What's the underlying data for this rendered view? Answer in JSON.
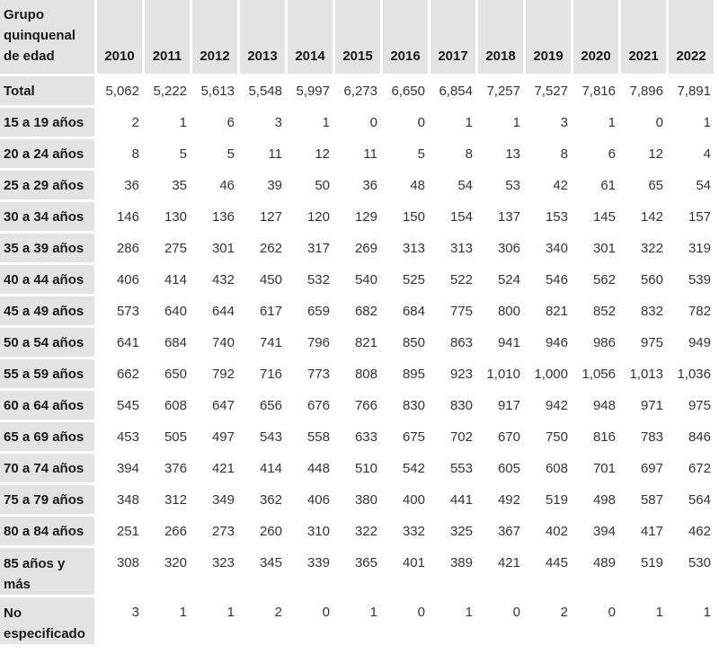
{
  "chart_data": {
    "type": "table",
    "row_header_label": "Grupo quinquenal de edad",
    "columns": [
      "2010",
      "2011",
      "2012",
      "2013",
      "2014",
      "2015",
      "2016",
      "2017",
      "2018",
      "2019",
      "2020",
      "2021",
      "2022"
    ],
    "rows": [
      {
        "label": "Total",
        "values": [
          "5,062",
          "5,222",
          "5,613",
          "5,548",
          "5,997",
          "6,273",
          "6,650",
          "6,854",
          "7,257",
          "7,527",
          "7,816",
          "7,896",
          "7,891"
        ]
      },
      {
        "label": "15 a 19 años",
        "values": [
          "2",
          "1",
          "6",
          "3",
          "1",
          "0",
          "0",
          "1",
          "1",
          "3",
          "1",
          "0",
          "1"
        ]
      },
      {
        "label": "20 a 24 años",
        "values": [
          "8",
          "5",
          "5",
          "11",
          "12",
          "11",
          "5",
          "8",
          "13",
          "8",
          "6",
          "12",
          "4"
        ]
      },
      {
        "label": "25 a 29 años",
        "values": [
          "36",
          "35",
          "46",
          "39",
          "50",
          "36",
          "48",
          "54",
          "53",
          "42",
          "61",
          "65",
          "54"
        ]
      },
      {
        "label": "30 a 34 años",
        "values": [
          "146",
          "130",
          "136",
          "127",
          "120",
          "129",
          "150",
          "154",
          "137",
          "153",
          "145",
          "142",
          "157"
        ]
      },
      {
        "label": "35 a 39 años",
        "values": [
          "286",
          "275",
          "301",
          "262",
          "317",
          "269",
          "313",
          "313",
          "306",
          "340",
          "301",
          "322",
          "319"
        ]
      },
      {
        "label": "40 a 44 años",
        "values": [
          "406",
          "414",
          "432",
          "450",
          "532",
          "540",
          "525",
          "522",
          "524",
          "546",
          "562",
          "560",
          "539"
        ]
      },
      {
        "label": "45 a 49 años",
        "values": [
          "573",
          "640",
          "644",
          "617",
          "659",
          "682",
          "684",
          "775",
          "800",
          "821",
          "852",
          "832",
          "782"
        ]
      },
      {
        "label": "50 a 54 años",
        "values": [
          "641",
          "684",
          "740",
          "741",
          "796",
          "821",
          "850",
          "863",
          "941",
          "946",
          "986",
          "975",
          "949"
        ]
      },
      {
        "label": "55 a 59 años",
        "values": [
          "662",
          "650",
          "792",
          "716",
          "773",
          "808",
          "895",
          "923",
          "1,010",
          "1,000",
          "1,056",
          "1,013",
          "1,036"
        ]
      },
      {
        "label": "60 a 64 años",
        "values": [
          "545",
          "608",
          "647",
          "656",
          "676",
          "766",
          "830",
          "830",
          "917",
          "942",
          "948",
          "971",
          "975"
        ]
      },
      {
        "label": "65 a 69 años",
        "values": [
          "453",
          "505",
          "497",
          "543",
          "558",
          "633",
          "675",
          "702",
          "670",
          "750",
          "816",
          "783",
          "846"
        ]
      },
      {
        "label": "70 a 74 años",
        "values": [
          "394",
          "376",
          "421",
          "414",
          "448",
          "510",
          "542",
          "553",
          "605",
          "608",
          "701",
          "697",
          "672"
        ]
      },
      {
        "label": "75 a 79 años",
        "values": [
          "348",
          "312",
          "349",
          "362",
          "406",
          "380",
          "400",
          "441",
          "492",
          "519",
          "498",
          "587",
          "564"
        ]
      },
      {
        "label": "80 a 84 años",
        "values": [
          "251",
          "266",
          "273",
          "260",
          "310",
          "322",
          "332",
          "325",
          "367",
          "402",
          "394",
          "417",
          "462"
        ]
      },
      {
        "label": "85 años y más",
        "values": [
          "308",
          "320",
          "323",
          "345",
          "339",
          "365",
          "401",
          "389",
          "421",
          "445",
          "489",
          "519",
          "530"
        ],
        "tall": true
      },
      {
        "label": "No especificado",
        "values": [
          "3",
          "1",
          "1",
          "2",
          "0",
          "1",
          "0",
          "1",
          "0",
          "2",
          "0",
          "1",
          "1"
        ],
        "tall": true
      }
    ]
  }
}
